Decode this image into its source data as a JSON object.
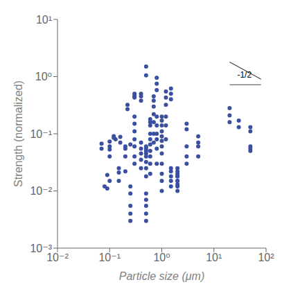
{
  "chart_data": {
    "type": "scatter",
    "title": "",
    "xlabel": "Particle size (μm)",
    "ylabel": "Strength (normalized)",
    "log": true,
    "grid": false,
    "color": "#3B4FA0",
    "marker": "circle",
    "xlim": [
      0.01,
      100
    ],
    "ylim": [
      0.001,
      10
    ],
    "xticks": [
      {
        "value": 0.01,
        "label": "10⁻²"
      },
      {
        "value": 0.1,
        "label": "10⁻¹"
      },
      {
        "value": 1,
        "label": "10⁰"
      },
      {
        "value": 10,
        "label": "10¹"
      },
      {
        "value": 100,
        "label": "10²"
      }
    ],
    "yticks": [
      {
        "value": 0.001,
        "label": "10⁻³"
      },
      {
        "value": 0.01,
        "label": "10⁻²"
      },
      {
        "value": 0.1,
        "label": "10⁻¹"
      },
      {
        "value": 1,
        "label": "10⁰"
      },
      {
        "value": 10,
        "label": "10¹"
      }
    ],
    "x": [
      0.07,
      0.07,
      0.08,
      0.09,
      0.09,
      0.1,
      0.1,
      0.1,
      0.1,
      0.1,
      0.12,
      0.12,
      0.13,
      0.15,
      0.15,
      0.15,
      0.16,
      0.16,
      0.2,
      0.2,
      0.2,
      0.2,
      0.22,
      0.22,
      0.25,
      0.25,
      0.25,
      0.25,
      0.25,
      0.25,
      0.3,
      0.3,
      0.3,
      0.3,
      0.3,
      0.3,
      0.3,
      0.3,
      0.3,
      0.3,
      0.3,
      0.4,
      0.4,
      0.4,
      0.4,
      0.4,
      0.4,
      0.4,
      0.4,
      0.5,
      0.5,
      0.5,
      0.5,
      0.5,
      0.5,
      0.5,
      0.5,
      0.5,
      0.5,
      0.5,
      0.5,
      0.5,
      0.5,
      0.5,
      0.6,
      0.6,
      0.6,
      0.6,
      0.6,
      0.6,
      0.6,
      0.6,
      0.6,
      0.6,
      0.7,
      0.7,
      0.7,
      0.7,
      0.7,
      0.7,
      0.7,
      0.8,
      0.8,
      0.8,
      0.8,
      0.8,
      0.8,
      0.8,
      0.8,
      0.8,
      1.0,
      1.0,
      1.0,
      1.0,
      1.0,
      1.0,
      1.0,
      1.0,
      1.0,
      1.0,
      1.0,
      1.0,
      1.2,
      1.2,
      1.2,
      1.2,
      1.2,
      1.2,
      1.5,
      1.5,
      1.5,
      1.5,
      1.5,
      1.5,
      1.5,
      1.5,
      2.0,
      2.0,
      2.0,
      2.0,
      2.0,
      2.0,
      2.0,
      2.0,
      2.0,
      2.0,
      3.0,
      3.0,
      3.0,
      3.0,
      3.0,
      5.0,
      5.0,
      5.0,
      5.0,
      20.0,
      20.0,
      20.0,
      30.0,
      30.0,
      50.0,
      50.0,
      50.0,
      50.0,
      50.0
    ],
    "values": [
      0.067,
      0.055,
      0.012,
      0.011,
      0.019,
      0.06,
      0.073,
      0.053,
      0.04,
      0.015,
      0.085,
      0.091,
      0.08,
      0.021,
      0.015,
      0.025,
      0.088,
      0.07,
      0.055,
      0.06,
      0.04,
      0.022,
      0.32,
      0.27,
      0.065,
      0.012,
      0.009,
      0.0055,
      0.004,
      0.003,
      0.45,
      0.43,
      0.5,
      0.46,
      0.2,
      0.15,
      0.11,
      0.08,
      0.06,
      0.04,
      0.03,
      0.5,
      0.45,
      0.38,
      0.07,
      0.055,
      0.045,
      0.035,
      0.025,
      1.5,
      1.05,
      0.06,
      0.055,
      0.05,
      0.045,
      0.04,
      0.032,
      0.025,
      0.018,
      0.009,
      0.007,
      0.0055,
      0.004,
      0.003,
      0.18,
      0.16,
      0.14,
      0.1,
      0.08,
      0.065,
      0.05,
      0.04,
      0.03,
      0.02,
      0.45,
      0.38,
      0.3,
      0.22,
      0.16,
      0.1,
      0.07,
      0.95,
      0.75,
      0.58,
      0.2,
      0.14,
      0.1,
      0.08,
      0.055,
      0.03,
      0.2,
      0.17,
      0.14,
      0.11,
      0.09,
      0.075,
      0.06,
      0.045,
      0.03,
      0.02,
      0.015,
      0.01,
      0.55,
      0.43,
      0.32,
      0.2,
      0.14,
      0.08,
      0.62,
      0.5,
      0.4,
      0.025,
      0.022,
      0.018,
      0.015,
      0.012,
      0.025,
      0.022,
      0.02,
      0.018,
      0.015,
      0.012,
      0.01,
      0.018,
      0.015,
      0.013,
      0.15,
      0.12,
      0.06,
      0.04,
      0.03,
      0.09,
      0.07,
      0.06,
      0.04,
      0.28,
      0.21,
      0.16,
      0.17,
      0.13,
      0.06,
      0.05,
      0.11,
      0.13,
      0.055
    ],
    "reference_lines": [
      {
        "x": [
          20,
          80
        ],
        "y": [
          1.8,
          0.9
        ],
        "color": "#444444"
      },
      {
        "x": [
          20,
          80
        ],
        "y": [
          0.72,
          0.72
        ],
        "color": "#444444"
      }
    ],
    "annotations": [
      {
        "text": "-1/2",
        "x": 28,
        "y": 0.95
      }
    ]
  }
}
